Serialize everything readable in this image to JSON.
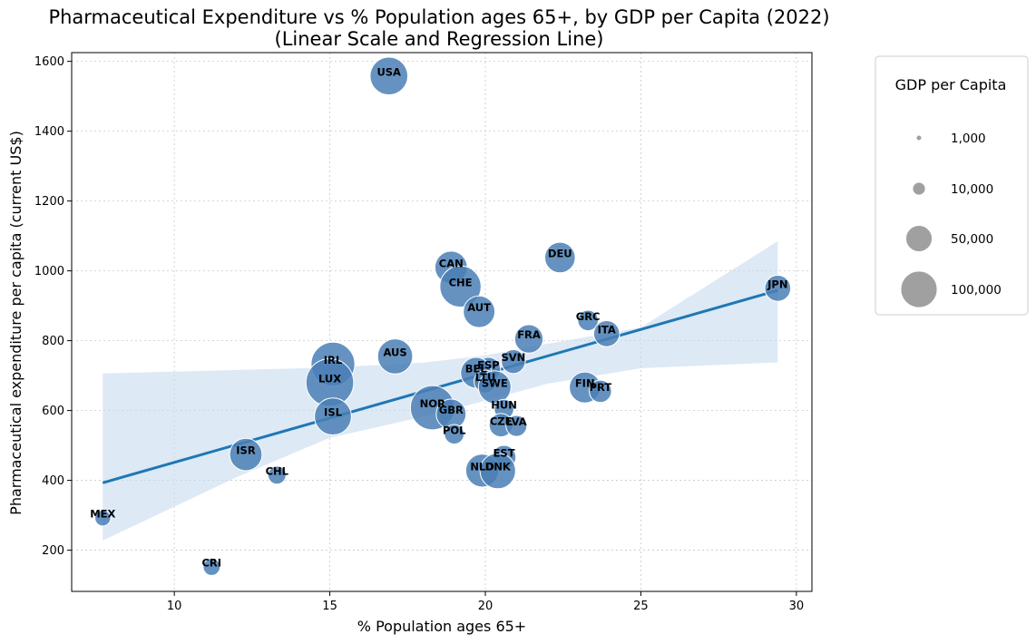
{
  "chart_data": {
    "type": "scatter",
    "title": "Pharmaceutical Expenditure vs % Population ages 65+, by GDP per Capita (2022)",
    "subtitle": "(Linear Scale and Regression Line)",
    "xlabel": "% Population ages 65+",
    "ylabel": "Pharmaceutical expenditure per capita (current US$)",
    "xlim": [
      6.7,
      30.5
    ],
    "ylim": [
      82,
      1625
    ],
    "xticks": [
      10,
      15,
      20,
      25,
      30
    ],
    "yticks": [
      200,
      400,
      600,
      800,
      1000,
      1200,
      1400,
      1600
    ],
    "grid": true,
    "legend": {
      "title": "GDP per Capita",
      "placement": "outside-right",
      "entries": [
        {
          "label": "1,000",
          "value": 1000
        },
        {
          "label": "10,000",
          "value": 10000
        },
        {
          "label": "50,000",
          "value": 50000
        },
        {
          "label": "100,000",
          "value": 100000
        }
      ]
    },
    "marker_color": "#4a7fb5",
    "line_color": "#1f77b4",
    "band_color": "#c6dbef",
    "regression": {
      "x": [
        7.7,
        29.4
      ],
      "y": [
        393,
        944
      ]
    },
    "confidence_band": {
      "x": [
        7.7,
        12,
        15,
        18,
        20,
        22,
        25,
        29.4
      ],
      "upper": [
        706,
        716,
        723,
        737,
        758,
        791,
        838,
        1085
      ],
      "lower": [
        228,
        409,
        522,
        582,
        628,
        677,
        721,
        738
      ]
    },
    "points": [
      {
        "label": "USA",
        "x": 16.9,
        "y": 1558,
        "gdp": 76000
      },
      {
        "label": "CAN",
        "x": 18.9,
        "y": 1010,
        "gdp": 55000
      },
      {
        "label": "CHE",
        "x": 19.2,
        "y": 955,
        "gdp": 92000
      },
      {
        "label": "DEU",
        "x": 22.4,
        "y": 1038,
        "gdp": 48000
      },
      {
        "label": "JPN",
        "x": 29.4,
        "y": 950,
        "gdp": 34000
      },
      {
        "label": "AUT",
        "x": 19.8,
        "y": 883,
        "gdp": 52000
      },
      {
        "label": "GRC",
        "x": 23.3,
        "y": 858,
        "gdp": 20000
      },
      {
        "label": "ITA",
        "x": 23.9,
        "y": 820,
        "gdp": 34000
      },
      {
        "label": "FRA",
        "x": 21.4,
        "y": 805,
        "gdp": 41000
      },
      {
        "label": "IRL",
        "x": 15.1,
        "y": 733,
        "gdp": 104000
      },
      {
        "label": "AUS",
        "x": 17.1,
        "y": 755,
        "gdp": 65000
      },
      {
        "label": "SVN",
        "x": 20.9,
        "y": 740,
        "gdp": 28000
      },
      {
        "label": "ESP",
        "x": 20.1,
        "y": 718,
        "gdp": 29000
      },
      {
        "label": "BEL",
        "x": 19.7,
        "y": 708,
        "gdp": 49000
      },
      {
        "label": "LUX",
        "x": 15.0,
        "y": 680,
        "gdp": 125000
      },
      {
        "label": "LTU",
        "x": 20.0,
        "y": 683,
        "gdp": 25000
      },
      {
        "label": "SWE",
        "x": 20.3,
        "y": 667,
        "gdp": 56000
      },
      {
        "label": "FIN",
        "x": 23.2,
        "y": 666,
        "gdp": 50000
      },
      {
        "label": "PRT",
        "x": 23.7,
        "y": 655,
        "gdp": 24000
      },
      {
        "label": "NOR",
        "x": 18.3,
        "y": 608,
        "gdp": 106000
      },
      {
        "label": "GBR",
        "x": 18.9,
        "y": 590,
        "gdp": 46000
      },
      {
        "label": "ISL",
        "x": 15.1,
        "y": 583,
        "gdp": 73000
      },
      {
        "label": "HUN",
        "x": 20.6,
        "y": 604,
        "gdp": 18000
      },
      {
        "label": "CZE",
        "x": 20.5,
        "y": 558,
        "gdp": 27000
      },
      {
        "label": "LVA",
        "x": 21.0,
        "y": 556,
        "gdp": 21000
      },
      {
        "label": "POL",
        "x": 19.0,
        "y": 532,
        "gdp": 18000
      },
      {
        "label": "EST",
        "x": 20.6,
        "y": 466,
        "gdp": 28000
      },
      {
        "label": "NLD",
        "x": 19.9,
        "y": 428,
        "gdp": 57000
      },
      {
        "label": "DNK",
        "x": 20.4,
        "y": 427,
        "gdp": 67000
      },
      {
        "label": "ISR",
        "x": 12.3,
        "y": 474,
        "gdp": 55000
      },
      {
        "label": "CHL",
        "x": 13.3,
        "y": 415,
        "gdp": 15000
      },
      {
        "label": "MEX",
        "x": 7.7,
        "y": 292,
        "gdp": 11000
      },
      {
        "label": "CRI",
        "x": 11.2,
        "y": 152,
        "gdp": 13000
      }
    ]
  }
}
